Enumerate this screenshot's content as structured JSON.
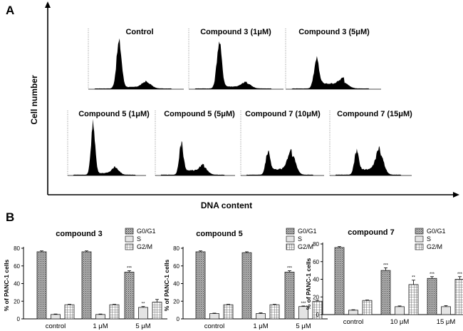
{
  "panel_a": {
    "letter": "A",
    "y_axis_label": "Cell number",
    "x_axis_label": "DNA content",
    "histograms": [
      {
        "title": "Control",
        "g1": 0.95,
        "g2": 0.12,
        "s": 0.03
      },
      {
        "title": "Compound  3 (1μM)",
        "g1": 0.93,
        "g2": 0.1,
        "s": 0.04
      },
      {
        "title": "Compound  3 (5μM)",
        "g1": 0.55,
        "g2": 0.12,
        "s": 0.1
      },
      {
        "title": "Compound  5 (1μM)",
        "g1": 0.95,
        "g2": 0.12,
        "s": 0.03
      },
      {
        "title": "Compound  5 (5μM)",
        "g1": 0.55,
        "g2": 0.13,
        "s": 0.08
      },
      {
        "title": "Compound  7 (10μM)",
        "g1": 0.4,
        "g2": 0.38,
        "s": 0.1
      },
      {
        "title": "Compound  7 (15μM)",
        "g1": 0.4,
        "g2": 0.4,
        "s": 0.1
      }
    ]
  },
  "panel_b": {
    "letter": "B"
  },
  "colors": {
    "g0g1": "#aaaaaa",
    "s": "#e4e4e4",
    "g2m": "#ffffff",
    "stroke": "#222222"
  },
  "chart_data": [
    {
      "type": "bar",
      "title": "compound 3",
      "ylabel": "% of PANC-1 cells",
      "xlabel": "",
      "ylim": [
        0,
        80
      ],
      "yticks": [
        "0",
        "20",
        "40",
        "60",
        "80"
      ],
      "categories": [
        "control",
        "1 μM",
        "5 μM"
      ],
      "series": [
        {
          "name": "G0/G1",
          "values": [
            76,
            76,
            53
          ],
          "errors": [
            1,
            1,
            1.5
          ]
        },
        {
          "name": "S",
          "values": [
            5,
            5,
            13
          ],
          "errors": [
            0.5,
            0.5,
            1
          ]
        },
        {
          "name": "G2/M",
          "values": [
            16,
            16,
            19
          ],
          "errors": [
            0.5,
            0.5,
            3
          ]
        }
      ],
      "significance": [
        [
          "",
          "",
          "***"
        ],
        [
          "",
          "",
          "**"
        ],
        [
          "",
          "",
          ""
        ]
      ],
      "legend": [
        "G0/G1",
        "S",
        "G2/M"
      ]
    },
    {
      "type": "bar",
      "title": "compound 5",
      "ylabel": "% of PANC-1 cells",
      "xlabel": "",
      "ylim": [
        0,
        80
      ],
      "yticks": [
        "0",
        "20",
        "40",
        "60",
        "80"
      ],
      "categories": [
        "control",
        "1 μM",
        "5 μM"
      ],
      "series": [
        {
          "name": "G0/G1",
          "values": [
            76,
            75,
            53
          ],
          "errors": [
            1,
            1,
            1.5
          ]
        },
        {
          "name": "S",
          "values": [
            6,
            6,
            14
          ],
          "errors": [
            0.5,
            0.8,
            0.6
          ]
        },
        {
          "name": "G2/M",
          "values": [
            16,
            16,
            20
          ],
          "errors": [
            0.5,
            0.5,
            1
          ]
        }
      ],
      "significance": [
        [
          "",
          "",
          "***"
        ],
        [
          "",
          "",
          "***"
        ],
        [
          "",
          "",
          ""
        ]
      ],
      "legend": [
        "G0/G1",
        "S",
        "G2/M"
      ]
    },
    {
      "type": "bar",
      "title": "compound 7",
      "ylabel": "% of PANC-1 cells",
      "xlabel": "",
      "ylim": [
        0,
        80
      ],
      "yticks": [
        "0",
        "20",
        "40",
        "60",
        "80"
      ],
      "categories": [
        "control",
        "10 μM",
        "15 μM"
      ],
      "series": [
        {
          "name": "G0/G1",
          "values": [
            76,
            50,
            41
          ],
          "errors": [
            1,
            3,
            2
          ]
        },
        {
          "name": "S",
          "values": [
            5,
            9,
            9
          ],
          "errors": [
            0.5,
            0.8,
            1.2
          ]
        },
        {
          "name": "G2/M",
          "values": [
            16,
            34,
            40
          ],
          "errors": [
            0.5,
            5,
            3
          ]
        }
      ],
      "significance": [
        [
          "",
          "***",
          "***"
        ],
        [
          "",
          "",
          ""
        ],
        [
          "",
          "**",
          "***"
        ]
      ],
      "legend": [
        "G0/G1",
        "S",
        "G2/M"
      ]
    }
  ]
}
